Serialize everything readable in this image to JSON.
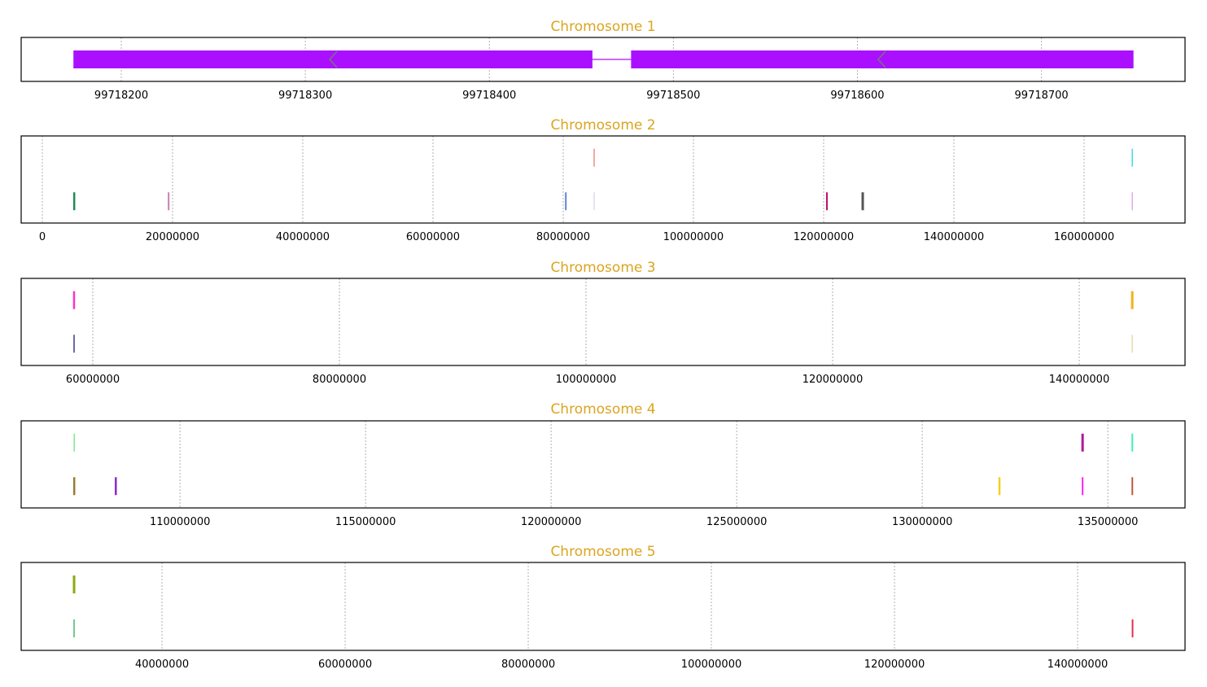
{
  "chart_data": [
    {
      "type": "gene-structure",
      "title": "Chromosome 1",
      "xlim": [
        99718145.6,
        99718778
      ],
      "ticks": [
        99718200,
        99718300,
        99718400,
        99718500,
        99718600,
        99718700
      ],
      "grid": true,
      "exons": [
        {
          "start": 99718174,
          "end": 99718456
        },
        {
          "start": 99718477,
          "end": 99718750
        }
      ],
      "exon_color": "#aa10ff",
      "strand": "-",
      "strand_markers": [
        99718315,
        99718613
      ]
    },
    {
      "type": "track-marks",
      "title": "Chromosome 2",
      "xlim": [
        -3250000,
        175500000
      ],
      "ticks": [
        0,
        20000000,
        40000000,
        60000000,
        80000000,
        100000000,
        120000000,
        140000000,
        160000000
      ],
      "grid": true,
      "marks": [
        {
          "pos": 4900000,
          "track": 2,
          "color": "#1e8a5a",
          "w": 2.5
        },
        {
          "pos": 19400000,
          "track": 2,
          "color": "#c77fb0",
          "w": 2
        },
        {
          "pos": 80400000,
          "track": 2,
          "color": "#5b86d6",
          "w": 2
        },
        {
          "pos": 84750000,
          "track": 1,
          "color": "#f4a8a0",
          "w": 2
        },
        {
          "pos": 84750000,
          "track": 2,
          "color": "#e8e4ee",
          "w": 2
        },
        {
          "pos": 120500000,
          "track": 2,
          "color": "#c0106a",
          "w": 2
        },
        {
          "pos": 126000000,
          "track": 2,
          "color": "#555555",
          "w": 3
        },
        {
          "pos": 167400000,
          "track": 1,
          "color": "#3fd8e8",
          "w": 1.5
        },
        {
          "pos": 167400000,
          "track": 2,
          "color": "#e0a8f0",
          "w": 1.5
        }
      ]
    },
    {
      "type": "track-marks",
      "title": "Chromosome 3",
      "xlim": [
        54190000,
        148580000
      ],
      "ticks": [
        60000000,
        80000000,
        100000000,
        120000000,
        140000000
      ],
      "grid": true,
      "marks": [
        {
          "pos": 58480000,
          "track": 1,
          "color": "#ff30c8",
          "w": 2.5
        },
        {
          "pos": 58480000,
          "track": 2,
          "color": "#6a6aa8",
          "w": 2
        },
        {
          "pos": 144300000,
          "track": 1,
          "color": "#f2b01e",
          "w": 3
        },
        {
          "pos": 144300000,
          "track": 2,
          "color": "#e8e4c0",
          "w": 2
        }
      ]
    },
    {
      "type": "track-marks",
      "title": "Chromosome 4",
      "xlim": [
        105720000,
        137080000
      ],
      "ticks": [
        110000000,
        115000000,
        120000000,
        125000000,
        130000000,
        135000000
      ],
      "grid": true,
      "marks": [
        {
          "pos": 107150000,
          "track": 1,
          "color": "#80e890",
          "w": 1.5
        },
        {
          "pos": 107150000,
          "track": 2,
          "color": "#9a7a30",
          "w": 2.5
        },
        {
          "pos": 108270000,
          "track": 2,
          "color": "#8a2ad0",
          "w": 2.5
        },
        {
          "pos": 132080000,
          "track": 2,
          "color": "#f4d020",
          "w": 2.5
        },
        {
          "pos": 134320000,
          "track": 1,
          "color": "#b0189a",
          "w": 3
        },
        {
          "pos": 134320000,
          "track": 2,
          "color": "#ff20f0",
          "w": 2
        },
        {
          "pos": 135660000,
          "track": 1,
          "color": "#40f0b8",
          "w": 2
        },
        {
          "pos": 135660000,
          "track": 2,
          "color": "#c05838",
          "w": 2
        }
      ]
    },
    {
      "type": "track-marks",
      "title": "Chromosome 5",
      "xlim": [
        24620000,
        151730000
      ],
      "ticks": [
        40000000,
        60000000,
        80000000,
        100000000,
        120000000,
        140000000
      ],
      "grid": true,
      "marks": [
        {
          "pos": 30400000,
          "track": 1,
          "color": "#8aaa10",
          "w": 3
        },
        {
          "pos": 30400000,
          "track": 2,
          "color": "#50b070",
          "w": 1.5
        },
        {
          "pos": 146000000,
          "track": 2,
          "color": "#e03050",
          "w": 2
        }
      ]
    }
  ]
}
